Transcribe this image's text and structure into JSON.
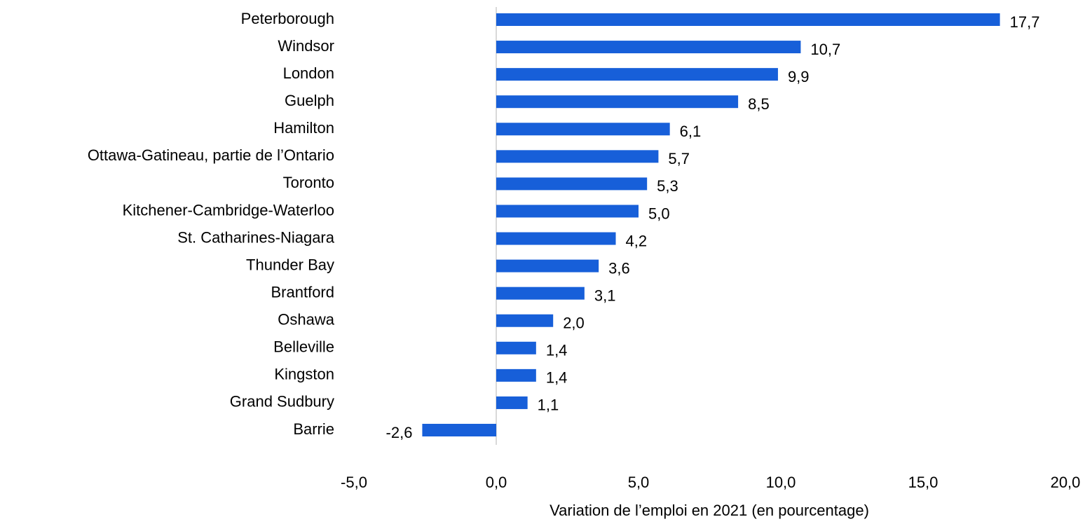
{
  "chart_data": {
    "type": "barh",
    "x_label": "Variation de l’emploi en 2021 (en pourcentage)",
    "categories": [
      "Peterborough",
      "Windsor",
      "London",
      "Guelph",
      "Hamilton",
      "Ottawa-Gatineau, partie de l’Ontario",
      "Toronto",
      "Kitchener-Cambridge-Waterloo",
      "St. Catharines-Niagara",
      "Thunder Bay",
      "Brantford",
      "Oshawa",
      "Belleville",
      "Kingston",
      "Grand Sudbury",
      "Barrie"
    ],
    "values": [
      17.7,
      10.7,
      9.9,
      8.5,
      6.1,
      5.7,
      5.3,
      5.0,
      4.2,
      3.6,
      3.1,
      2.0,
      1.4,
      1.4,
      1.1,
      -2.6
    ],
    "value_labels": [
      "17,7",
      "10,7",
      "9,9",
      "8,5",
      "6,1",
      "5,7",
      "5,3",
      "5,0",
      "4,2",
      "3,6",
      "3,1",
      "2,0",
      "1,4",
      "1,4",
      "1,1",
      "-2,6"
    ],
    "color": "#175fd9",
    "xlim": [
      -5,
      20
    ],
    "xticks": [
      {
        "value": -5,
        "label": "-5,0"
      },
      {
        "value": 0,
        "label": "0,0"
      },
      {
        "value": 5,
        "label": "5,0"
      },
      {
        "value": 10,
        "label": "10,0"
      },
      {
        "value": 15,
        "label": "15,0"
      },
      {
        "value": 20,
        "label": "20,0"
      }
    ],
    "grid": false
  }
}
